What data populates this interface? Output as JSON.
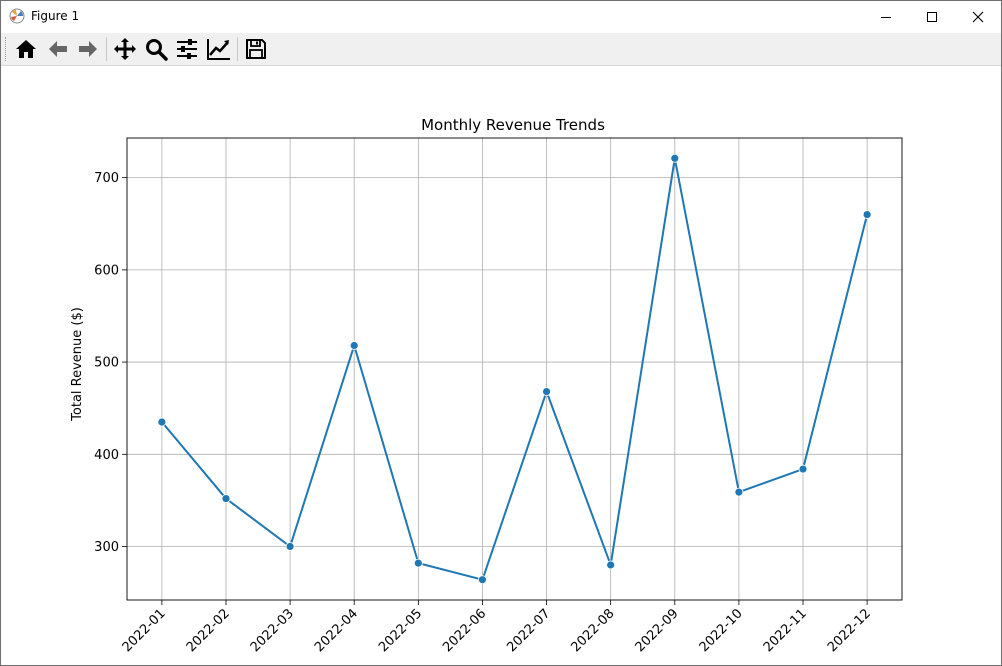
{
  "window": {
    "title": "Figure 1",
    "controls": [
      "minimize",
      "maximize",
      "close"
    ]
  },
  "toolbar": {
    "buttons": [
      {
        "name": "home-icon",
        "tooltip": "Home"
      },
      {
        "name": "back-icon",
        "tooltip": "Back"
      },
      {
        "name": "forward-icon",
        "tooltip": "Forward"
      },
      {
        "name": "pan-icon",
        "tooltip": "Pan"
      },
      {
        "name": "zoom-icon",
        "tooltip": "Zoom"
      },
      {
        "name": "subplots-icon",
        "tooltip": "Configure subplots"
      },
      {
        "name": "edit-axis-icon",
        "tooltip": "Edit axis"
      },
      {
        "name": "save-icon",
        "tooltip": "Save"
      }
    ]
  },
  "chart_data": {
    "type": "line",
    "title": "Monthly Revenue Trends",
    "xlabel": "",
    "ylabel": "Total Revenue ($)",
    "categories": [
      "2022-01",
      "2022-02",
      "2022-03",
      "2022-04",
      "2022-05",
      "2022-06",
      "2022-07",
      "2022-08",
      "2022-09",
      "2022-10",
      "2022-11",
      "2022-12"
    ],
    "series": [
      {
        "values": [
          435,
          352,
          300,
          518,
          282,
          264,
          468,
          280,
          721,
          359,
          384,
          660
        ],
        "color": "#1f77b4",
        "marker": "circle"
      }
    ],
    "ylim": [
      242,
      743
    ],
    "yticks": [
      300,
      400,
      500,
      600,
      700
    ],
    "grid": true,
    "xtick_rotation": 45
  }
}
